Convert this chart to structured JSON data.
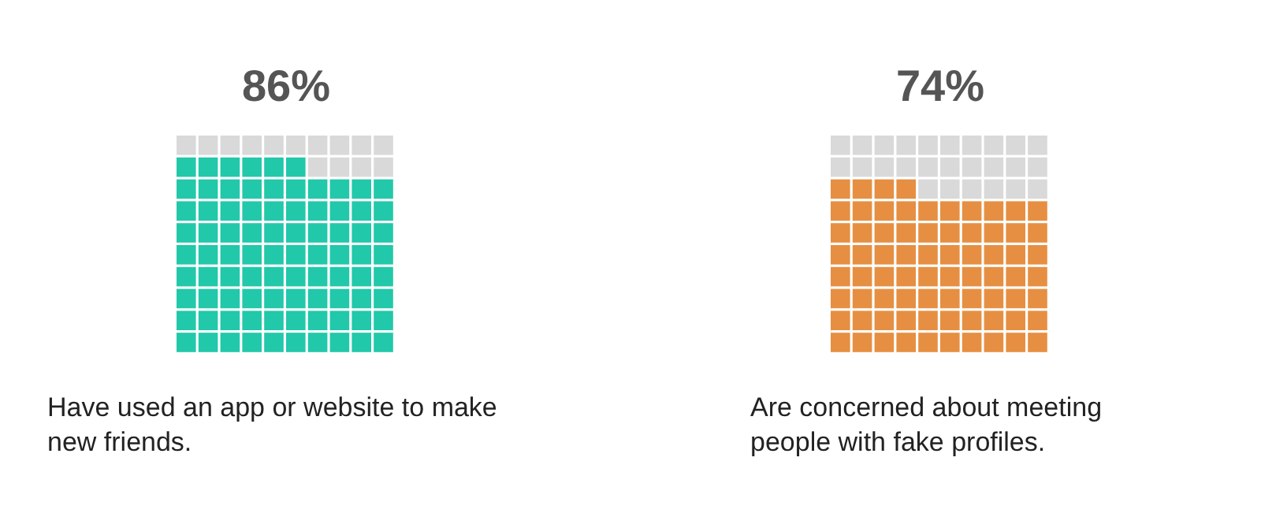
{
  "chart_data": [
    {
      "type": "other",
      "values": [
        86
      ],
      "value_labels": [
        "86%"
      ],
      "color": "#22c8aa",
      "annotations": [
        "Have used an app or website to make\nnew friends."
      ]
    },
    {
      "type": "other",
      "values": [
        74
      ],
      "value_labels": [
        "74%"
      ],
      "color": "#e68f42",
      "annotations": [
        "Are concerned about meeting\npeople with fake profiles."
      ]
    }
  ]
}
